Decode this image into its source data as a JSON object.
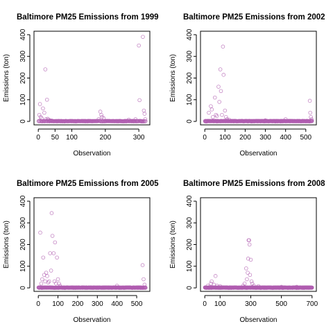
{
  "chart_data": [
    {
      "type": "scatter",
      "title": "Baltimore PM25 Emissions from 1999",
      "xlabel": "Observation",
      "ylabel": "Emissions (ton)",
      "xlim": [
        0,
        320
      ],
      "ylim": [
        0,
        400
      ],
      "xticks": [
        0,
        50,
        100,
        200,
        300
      ],
      "yticks": [
        0,
        100,
        200,
        300,
        400
      ],
      "n": 320,
      "base": 0.8,
      "spikes": [
        [
          3,
          30
        ],
        [
          5,
          80
        ],
        [
          7,
          20
        ],
        [
          10,
          15
        ],
        [
          14,
          60
        ],
        [
          18,
          40
        ],
        [
          21,
          240
        ],
        [
          23,
          10
        ],
        [
          26,
          100
        ],
        [
          28,
          12
        ],
        [
          30,
          8
        ],
        [
          35,
          5
        ],
        [
          40,
          4
        ],
        [
          180,
          10
        ],
        [
          185,
          45
        ],
        [
          188,
          30
        ],
        [
          190,
          20
        ],
        [
          195,
          15
        ],
        [
          270,
          8
        ],
        [
          290,
          10
        ],
        [
          300,
          350
        ],
        [
          302,
          98
        ],
        [
          312,
          390
        ],
        [
          315,
          50
        ],
        [
          317,
          35
        ],
        [
          319,
          10
        ]
      ],
      "marker_color": "#b05db0",
      "grid": false
    },
    {
      "type": "scatter",
      "title": "Baltimore PM25 Emissions from 2002",
      "xlabel": "Observation",
      "ylabel": "Emissions (ton)",
      "xlim": [
        0,
        531
      ],
      "ylim": [
        0,
        400
      ],
      "xticks": [
        0,
        100,
        200,
        300,
        400,
        500
      ],
      "yticks": [
        0,
        100,
        200,
        300,
        400
      ],
      "n": 531,
      "base": 0.8,
      "spikes": [
        [
          20,
          40
        ],
        [
          30,
          70
        ],
        [
          35,
          55
        ],
        [
          40,
          20
        ],
        [
          50,
          110
        ],
        [
          55,
          30
        ],
        [
          60,
          25
        ],
        [
          68,
          160
        ],
        [
          72,
          90
        ],
        [
          77,
          240
        ],
        [
          80,
          140
        ],
        [
          85,
          30
        ],
        [
          90,
          345
        ],
        [
          93,
          215
        ],
        [
          100,
          50
        ],
        [
          105,
          20
        ],
        [
          110,
          10
        ],
        [
          120,
          8
        ],
        [
          300,
          5
        ],
        [
          400,
          10
        ],
        [
          520,
          95
        ],
        [
          522,
          40
        ],
        [
          525,
          20
        ],
        [
          528,
          10
        ]
      ],
      "marker_color": "#b05db0",
      "grid": false
    },
    {
      "type": "scatter",
      "title": "Baltimore PM25 Emissions from 2005",
      "xlabel": "Observation",
      "ylabel": "Emissions (ton)",
      "xlim": [
        0,
        545
      ],
      "ylim": [
        0,
        400
      ],
      "xticks": [
        0,
        100,
        200,
        300,
        400,
        500
      ],
      "yticks": [
        0,
        100,
        200,
        300,
        400
      ],
      "n": 545,
      "base": 0.8,
      "spikes": [
        [
          10,
          255
        ],
        [
          15,
          20
        ],
        [
          20,
          40
        ],
        [
          25,
          140
        ],
        [
          30,
          60
        ],
        [
          35,
          30
        ],
        [
          40,
          70
        ],
        [
          45,
          55
        ],
        [
          50,
          25
        ],
        [
          55,
          30
        ],
        [
          60,
          160
        ],
        [
          65,
          80
        ],
        [
          68,
          345
        ],
        [
          72,
          240
        ],
        [
          78,
          160
        ],
        [
          82,
          30
        ],
        [
          85,
          210
        ],
        [
          90,
          20
        ],
        [
          95,
          140
        ],
        [
          100,
          40
        ],
        [
          105,
          20
        ],
        [
          110,
          10
        ],
        [
          400,
          10
        ],
        [
          530,
          105
        ],
        [
          535,
          40
        ],
        [
          540,
          15
        ]
      ],
      "marker_color": "#b05db0",
      "grid": false
    },
    {
      "type": "scatter",
      "title": "Baltimore PM25 Emissions from 2008",
      "xlabel": "Observation",
      "ylabel": "Emissions (ton)",
      "xlim": [
        0,
        700
      ],
      "ylim": [
        0,
        400
      ],
      "xticks": [
        0,
        100,
        300,
        500,
        700
      ],
      "yticks": [
        0,
        100,
        200,
        300,
        400
      ],
      "n": 700,
      "base": 0.8,
      "spikes": [
        [
          20,
          10
        ],
        [
          40,
          20
        ],
        [
          45,
          30
        ],
        [
          60,
          15
        ],
        [
          70,
          55
        ],
        [
          80,
          10
        ],
        [
          100,
          8
        ],
        [
          250,
          10
        ],
        [
          260,
          20
        ],
        [
          270,
          90
        ],
        [
          275,
          40
        ],
        [
          280,
          70
        ],
        [
          283,
          135
        ],
        [
          286,
          220
        ],
        [
          289,
          220
        ],
        [
          292,
          200
        ],
        [
          295,
          60
        ],
        [
          300,
          130
        ],
        [
          305,
          30
        ],
        [
          310,
          20
        ],
        [
          320,
          10
        ],
        [
          350,
          8
        ],
        [
          500,
          5
        ],
        [
          600,
          5
        ]
      ],
      "marker_color": "#b05db0",
      "grid": false
    }
  ]
}
